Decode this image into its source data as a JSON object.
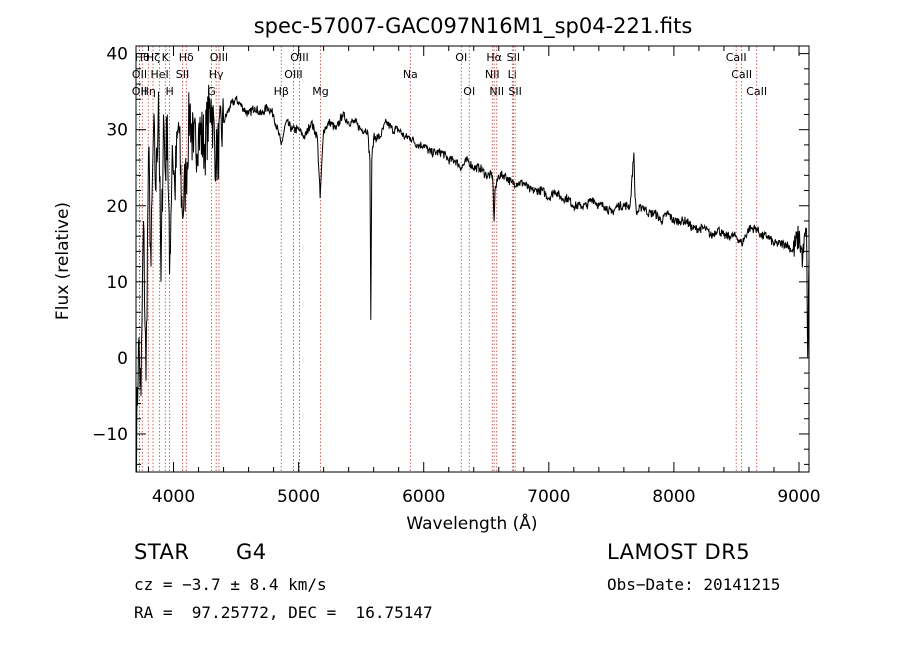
{
  "chart_data": {
    "type": "line",
    "title": "spec-57007-GAC097N16M1_sp04-221.fits",
    "xlabel": "Wavelength (Å)",
    "ylabel": "Flux (relative)",
    "xlim": [
      3700,
      9080
    ],
    "ylim": [
      -15,
      41
    ],
    "xticks": [
      4000,
      5000,
      6000,
      7000,
      8000,
      9000
    ],
    "yticks": [
      -10,
      0,
      10,
      20,
      30,
      40
    ],
    "grid": false,
    "series": [
      {
        "x": [
          3700,
          3720,
          3740,
          3760,
          3780,
          3800,
          3820,
          3840,
          3860,
          3880,
          3900,
          3920,
          3935,
          3950,
          3968,
          3990,
          4010,
          4040,
          4070,
          4101,
          4130,
          4160,
          4200,
          4250,
          4300,
          4340,
          4400,
          4450,
          4500,
          4550,
          4600,
          4650,
          4700,
          4750,
          4800,
          4861,
          4900,
          4950,
          5000,
          5050,
          5100,
          5150,
          5172,
          5200,
          5250,
          5300,
          5350,
          5400,
          5450,
          5500,
          5550,
          5570,
          5577,
          5585,
          5600,
          5650,
          5700,
          5750,
          5800,
          5850,
          5893,
          5950,
          6000,
          6050,
          6100,
          6150,
          6200,
          6250,
          6300,
          6350,
          6400,
          6450,
          6500,
          6550,
          6563,
          6570,
          6600,
          6650,
          6700,
          6750,
          6800,
          6850,
          6900,
          6950,
          7000,
          7050,
          7100,
          7150,
          7200,
          7250,
          7300,
          7350,
          7400,
          7450,
          7500,
          7550,
          7600,
          7650,
          7680,
          7690,
          7700,
          7750,
          7800,
          7850,
          7900,
          7950,
          8000,
          8050,
          8100,
          8150,
          8200,
          8250,
          8300,
          8350,
          8400,
          8450,
          8498,
          8542,
          8600,
          8662,
          8700,
          8750,
          8800,
          8850,
          8900,
          8950,
          9000,
          9030,
          9050,
          9060,
          9070,
          9080
        ],
        "y": [
          -14,
          2,
          -5,
          18,
          -3,
          27,
          12,
          30,
          22,
          35,
          10,
          32,
          24,
          32,
          11,
          28,
          22,
          31,
          19,
          24,
          33,
          27,
          30,
          28,
          34,
          26,
          31,
          33,
          34,
          33,
          32,
          33,
          32,
          33,
          32,
          28,
          31,
          30,
          30,
          29,
          31,
          29,
          21,
          30,
          31,
          30,
          32,
          31,
          31,
          30,
          30,
          26,
          5,
          26,
          29,
          29,
          31,
          30,
          30,
          29,
          29,
          28,
          28,
          27,
          27,
          27,
          26,
          26,
          25,
          26,
          25,
          25,
          24,
          24,
          18,
          22,
          24,
          24,
          23,
          23,
          23,
          22,
          22,
          22,
          21,
          22,
          21,
          21,
          20,
          20,
          20,
          21,
          20,
          20,
          19,
          20,
          20,
          20,
          27,
          21,
          19,
          20,
          19,
          19,
          18,
          19,
          18,
          18,
          18,
          17,
          17,
          17,
          16,
          17,
          16,
          16,
          16,
          15,
          17,
          17,
          16,
          16,
          15,
          15,
          15,
          14,
          16,
          13,
          16,
          17,
          0,
          13
        ]
      }
    ]
  },
  "lines": [
    {
      "x": 3750,
      "label": "Hθ",
      "row": 1
    },
    {
      "x": 3798,
      "label": "Hη",
      "row": 3
    },
    {
      "x": 3836,
      "label": "Hζ",
      "row": 1
    },
    {
      "x": 3728,
      "label": "OII",
      "row": 2
    },
    {
      "x": 3727,
      "label": "OII",
      "row": 3
    },
    {
      "x": 3889,
      "label": "HeI",
      "row": 2
    },
    {
      "x": 3934,
      "label": "K",
      "row": 1
    },
    {
      "x": 3969,
      "label": "H",
      "row": 3
    },
    {
      "x": 4072,
      "label": "SII",
      "row": 2
    },
    {
      "x": 4102,
      "label": "Hδ",
      "row": 1
    },
    {
      "x": 4304,
      "label": "G",
      "row": 3
    },
    {
      "x": 4341,
      "label": "Hγ",
      "row": 2
    },
    {
      "x": 4363,
      "label": "OIII",
      "row": 1
    },
    {
      "x": 4861,
      "label": "Hβ",
      "row": 3
    },
    {
      "x": 4959,
      "label": "OIII",
      "row": 2
    },
    {
      "x": 5007,
      "label": "OIII",
      "row": 1
    },
    {
      "x": 5175,
      "label": "Mg",
      "row": 3
    },
    {
      "x": 5893,
      "label": "Na",
      "row": 2
    },
    {
      "x": 6300,
      "label": "OI",
      "row": 1
    },
    {
      "x": 6364,
      "label": "OI",
      "row": 3
    },
    {
      "x": 6548,
      "label": "NII",
      "row": 2
    },
    {
      "x": 6563,
      "label": "Hα",
      "row": 1
    },
    {
      "x": 6584,
      "label": "NII",
      "row": 3
    },
    {
      "x": 6708,
      "label": "Li",
      "row": 2
    },
    {
      "x": 6717,
      "label": "SII",
      "row": 1
    },
    {
      "x": 6731,
      "label": "SII",
      "row": 3
    },
    {
      "x": 8498,
      "label": "CaII",
      "row": 1
    },
    {
      "x": 8542,
      "label": "CaII",
      "row": 2
    },
    {
      "x": 8662,
      "label": "CaII",
      "row": 3
    }
  ],
  "info": {
    "object_class": "STAR",
    "subclass": "G4",
    "survey": "LAMOST DR5",
    "cz_text": "cz = −3.7 ± 8.4 km/s",
    "obs_date_text": "Obs−Date: 20141215",
    "radec_text": "RA =  97.25772, DEC =  16.75147"
  }
}
